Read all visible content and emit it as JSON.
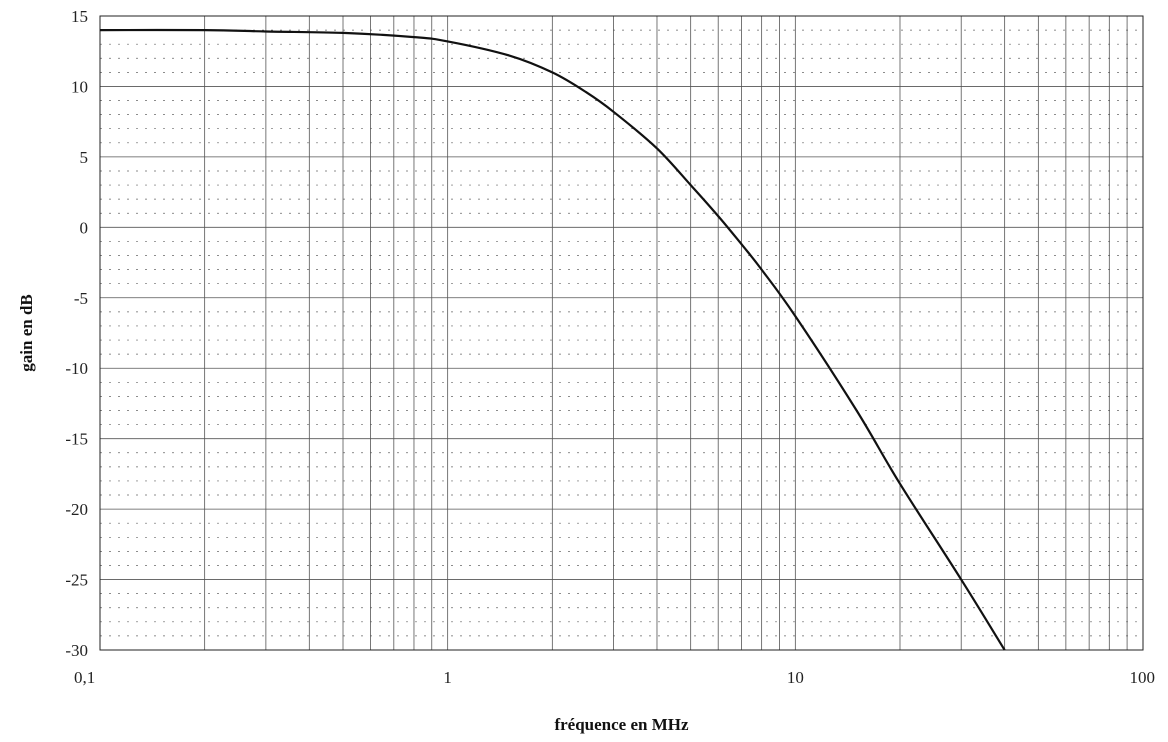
{
  "chart_data": {
    "type": "line",
    "title": "",
    "xlabel": "fréquence en MHz",
    "ylabel": "gain en dB",
    "x_scale": "log",
    "xlim": [
      0.1,
      100
    ],
    "ylim": [
      -30,
      15
    ],
    "x_ticks": [
      0.1,
      1,
      10,
      100
    ],
    "x_tick_labels": [
      "0,1",
      "1",
      "10",
      "100"
    ],
    "y_ticks": [
      15,
      10,
      5,
      0,
      -5,
      -10,
      -15,
      -20,
      -25,
      -30
    ],
    "y_tick_labels": [
      "15",
      "10",
      "5",
      "0",
      "-5",
      "-10",
      "-15",
      "-20",
      "-25",
      "-30"
    ],
    "grid": true,
    "legend": "none",
    "series": [
      {
        "x": [
          0.1,
          0.2,
          0.3,
          0.5,
          0.8,
          1,
          1.5,
          2,
          2.5,
          3,
          4,
          5,
          6,
          7,
          8,
          10,
          15,
          20,
          30,
          40
        ],
        "y": [
          14,
          14,
          13.9,
          13.8,
          13.5,
          13.2,
          12.2,
          11,
          9.6,
          8.2,
          5.6,
          3,
          0.8,
          -1.2,
          -3,
          -6.3,
          -13,
          -18.2,
          -25,
          -30
        ]
      }
    ]
  }
}
